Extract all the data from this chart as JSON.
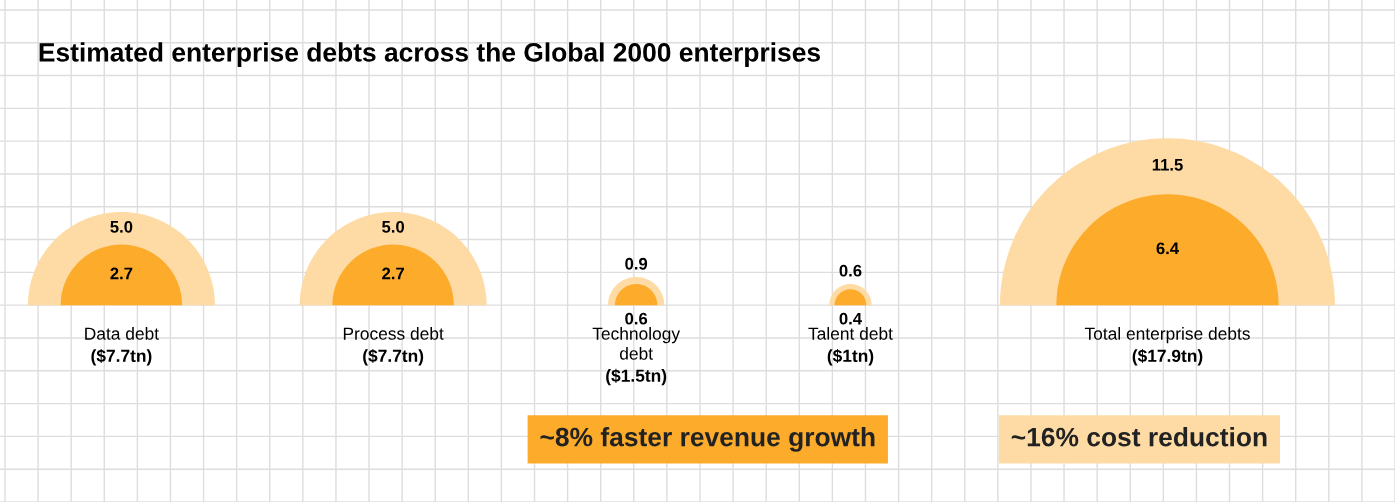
{
  "chart_data": {
    "type": "other",
    "title": "Estimated enterprise debts across the Global 2000 enterprises",
    "categories": [
      "Data debt",
      "Process debt",
      "Technology\ndebt",
      "Talent debt",
      "Total enterprise debts"
    ],
    "series": [
      {
        "color": "#fedba5",
        "values": [
          5.0,
          5.0,
          0.9,
          0.6,
          11.5
        ],
        "value_labels": [
          "5.0",
          "5.0",
          "0.9",
          "0.6",
          "11.5"
        ]
      },
      {
        "color": "#fdab2b",
        "values": [
          2.7,
          2.7,
          0.6,
          0.4,
          6.4
        ],
        "value_labels": [
          "2.7",
          "2.7",
          "0.6",
          "0.4",
          "6.4"
        ]
      }
    ],
    "totals": [
      "($7.7tn)",
      "($7.7tn)",
      "($1.5tn)",
      "($1tn)",
      "($17.9tn)"
    ],
    "annotations": [
      "~8% faster revenue growth",
      "~16% cost reduction"
    ]
  }
}
